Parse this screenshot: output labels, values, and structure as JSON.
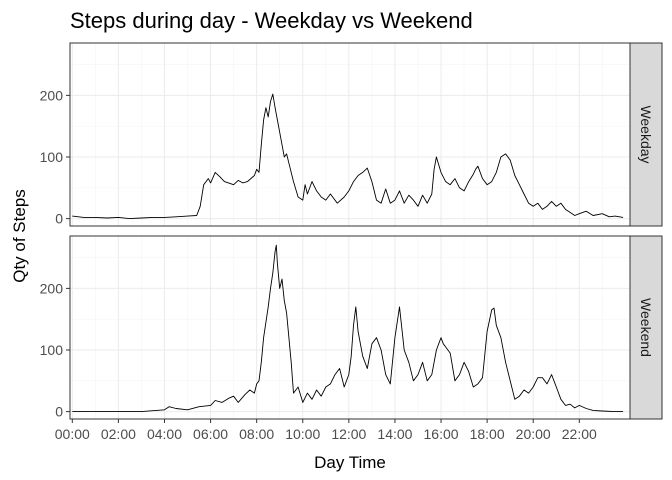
{
  "chart_data": {
    "type": "line",
    "title": "Steps during day - Weekday vs Weekend",
    "xlabel": "Day Time",
    "ylabel": "Qty of Steps",
    "xlim_hours": [
      -0.1,
      24.2
    ],
    "ylim": [
      -12,
      285
    ],
    "x_ticks": [
      "00:00",
      "02:00",
      "04:00",
      "06:00",
      "08:00",
      "10:00",
      "12:00",
      "14:00",
      "16:00",
      "18:00",
      "20:00",
      "22:00"
    ],
    "y_ticks": [
      0,
      100,
      200
    ],
    "grid": true,
    "facets": [
      {
        "label": "Weekday",
        "points": [
          [
            0,
            4
          ],
          [
            0.5,
            2
          ],
          [
            1,
            2
          ],
          [
            1.5,
            1
          ],
          [
            2,
            2
          ],
          [
            2.5,
            0
          ],
          [
            3,
            1
          ],
          [
            3.5,
            2
          ],
          [
            4,
            2
          ],
          [
            4.5,
            3
          ],
          [
            5,
            4
          ],
          [
            5.4,
            5
          ],
          [
            5.55,
            20
          ],
          [
            5.7,
            55
          ],
          [
            5.9,
            65
          ],
          [
            6,
            58
          ],
          [
            6.2,
            75
          ],
          [
            6.4,
            68
          ],
          [
            6.6,
            60
          ],
          [
            7,
            55
          ],
          [
            7.2,
            62
          ],
          [
            7.4,
            58
          ],
          [
            7.6,
            60
          ],
          [
            7.9,
            70
          ],
          [
            8,
            80
          ],
          [
            8.1,
            75
          ],
          [
            8.2,
            120
          ],
          [
            8.3,
            160
          ],
          [
            8.4,
            180
          ],
          [
            8.5,
            165
          ],
          [
            8.6,
            190
          ],
          [
            8.7,
            202
          ],
          [
            8.8,
            180
          ],
          [
            8.9,
            160
          ],
          [
            9,
            140
          ],
          [
            9.1,
            120
          ],
          [
            9.2,
            100
          ],
          [
            9.3,
            105
          ],
          [
            9.4,
            90
          ],
          [
            9.6,
            60
          ],
          [
            9.8,
            35
          ],
          [
            10,
            30
          ],
          [
            10.1,
            55
          ],
          [
            10.2,
            40
          ],
          [
            10.4,
            60
          ],
          [
            10.6,
            45
          ],
          [
            10.8,
            35
          ],
          [
            11,
            30
          ],
          [
            11.2,
            40
          ],
          [
            11.5,
            25
          ],
          [
            11.8,
            35
          ],
          [
            12,
            45
          ],
          [
            12.2,
            60
          ],
          [
            12.4,
            70
          ],
          [
            12.6,
            75
          ],
          [
            12.8,
            82
          ],
          [
            13,
            60
          ],
          [
            13.2,
            30
          ],
          [
            13.4,
            25
          ],
          [
            13.6,
            48
          ],
          [
            13.8,
            25
          ],
          [
            14,
            30
          ],
          [
            14.2,
            45
          ],
          [
            14.4,
            25
          ],
          [
            14.6,
            38
          ],
          [
            14.8,
            30
          ],
          [
            15,
            20
          ],
          [
            15.2,
            38
          ],
          [
            15.4,
            25
          ],
          [
            15.6,
            40
          ],
          [
            15.7,
            80
          ],
          [
            15.8,
            100
          ],
          [
            16,
            75
          ],
          [
            16.2,
            60
          ],
          [
            16.4,
            55
          ],
          [
            16.6,
            65
          ],
          [
            16.8,
            50
          ],
          [
            17,
            45
          ],
          [
            17.2,
            60
          ],
          [
            17.4,
            72
          ],
          [
            17.5,
            80
          ],
          [
            17.6,
            85
          ],
          [
            17.8,
            65
          ],
          [
            18,
            55
          ],
          [
            18.2,
            60
          ],
          [
            18.4,
            75
          ],
          [
            18.6,
            100
          ],
          [
            18.8,
            105
          ],
          [
            19,
            95
          ],
          [
            19.2,
            70
          ],
          [
            19.4,
            55
          ],
          [
            19.6,
            40
          ],
          [
            19.8,
            25
          ],
          [
            20,
            20
          ],
          [
            20.2,
            25
          ],
          [
            20.4,
            15
          ],
          [
            20.6,
            20
          ],
          [
            20.8,
            28
          ],
          [
            21,
            20
          ],
          [
            21.2,
            25
          ],
          [
            21.4,
            15
          ],
          [
            21.6,
            10
          ],
          [
            21.8,
            5
          ],
          [
            22,
            8
          ],
          [
            22.3,
            12
          ],
          [
            22.6,
            5
          ],
          [
            23,
            8
          ],
          [
            23.3,
            3
          ],
          [
            23.55,
            4
          ],
          [
            23.9,
            2
          ]
        ]
      },
      {
        "label": "Weekend",
        "points": [
          [
            0,
            0
          ],
          [
            1,
            0
          ],
          [
            2,
            0
          ],
          [
            3,
            0
          ],
          [
            4,
            3
          ],
          [
            4.2,
            8
          ],
          [
            4.5,
            5
          ],
          [
            5,
            3
          ],
          [
            5.5,
            8
          ],
          [
            6,
            10
          ],
          [
            6.2,
            18
          ],
          [
            6.5,
            15
          ],
          [
            6.8,
            22
          ],
          [
            7,
            25
          ],
          [
            7.2,
            15
          ],
          [
            7.5,
            28
          ],
          [
            7.7,
            35
          ],
          [
            7.9,
            30
          ],
          [
            8,
            45
          ],
          [
            8.1,
            50
          ],
          [
            8.2,
            80
          ],
          [
            8.3,
            120
          ],
          [
            8.4,
            145
          ],
          [
            8.5,
            170
          ],
          [
            8.6,
            200
          ],
          [
            8.7,
            225
          ],
          [
            8.8,
            260
          ],
          [
            8.85,
            270
          ],
          [
            8.9,
            240
          ],
          [
            9,
            200
          ],
          [
            9.1,
            215
          ],
          [
            9.2,
            180
          ],
          [
            9.3,
            160
          ],
          [
            9.4,
            120
          ],
          [
            9.5,
            80
          ],
          [
            9.6,
            30
          ],
          [
            9.8,
            40
          ],
          [
            10,
            15
          ],
          [
            10.2,
            30
          ],
          [
            10.4,
            20
          ],
          [
            10.6,
            35
          ],
          [
            10.8,
            25
          ],
          [
            11,
            40
          ],
          [
            11.2,
            45
          ],
          [
            11.4,
            60
          ],
          [
            11.6,
            70
          ],
          [
            11.8,
            40
          ],
          [
            12,
            60
          ],
          [
            12.1,
            90
          ],
          [
            12.2,
            140
          ],
          [
            12.3,
            170
          ],
          [
            12.4,
            130
          ],
          [
            12.6,
            90
          ],
          [
            12.8,
            70
          ],
          [
            13,
            110
          ],
          [
            13.2,
            120
          ],
          [
            13.4,
            100
          ],
          [
            13.6,
            60
          ],
          [
            13.8,
            45
          ],
          [
            14,
            120
          ],
          [
            14.2,
            170
          ],
          [
            14.4,
            100
          ],
          [
            14.6,
            80
          ],
          [
            14.8,
            50
          ],
          [
            15,
            60
          ],
          [
            15.2,
            80
          ],
          [
            15.4,
            50
          ],
          [
            15.6,
            60
          ],
          [
            15.8,
            100
          ],
          [
            16,
            120
          ],
          [
            16.1,
            110
          ],
          [
            16.2,
            105
          ],
          [
            16.4,
            95
          ],
          [
            16.6,
            50
          ],
          [
            16.8,
            60
          ],
          [
            17,
            80
          ],
          [
            17.2,
            65
          ],
          [
            17.4,
            40
          ],
          [
            17.6,
            45
          ],
          [
            17.8,
            55
          ],
          [
            18,
            130
          ],
          [
            18.2,
            165
          ],
          [
            18.3,
            168
          ],
          [
            18.4,
            140
          ],
          [
            18.6,
            120
          ],
          [
            18.8,
            80
          ],
          [
            19,
            50
          ],
          [
            19.2,
            20
          ],
          [
            19.4,
            25
          ],
          [
            19.6,
            35
          ],
          [
            19.8,
            30
          ],
          [
            20,
            40
          ],
          [
            20.2,
            55
          ],
          [
            20.4,
            55
          ],
          [
            20.6,
            45
          ],
          [
            20.8,
            60
          ],
          [
            21,
            40
          ],
          [
            21.2,
            20
          ],
          [
            21.4,
            10
          ],
          [
            21.6,
            12
          ],
          [
            21.8,
            6
          ],
          [
            22,
            10
          ],
          [
            22.3,
            5
          ],
          [
            22.6,
            2
          ],
          [
            23,
            1
          ],
          [
            23.5,
            0
          ],
          [
            23.9,
            0
          ]
        ]
      }
    ]
  }
}
